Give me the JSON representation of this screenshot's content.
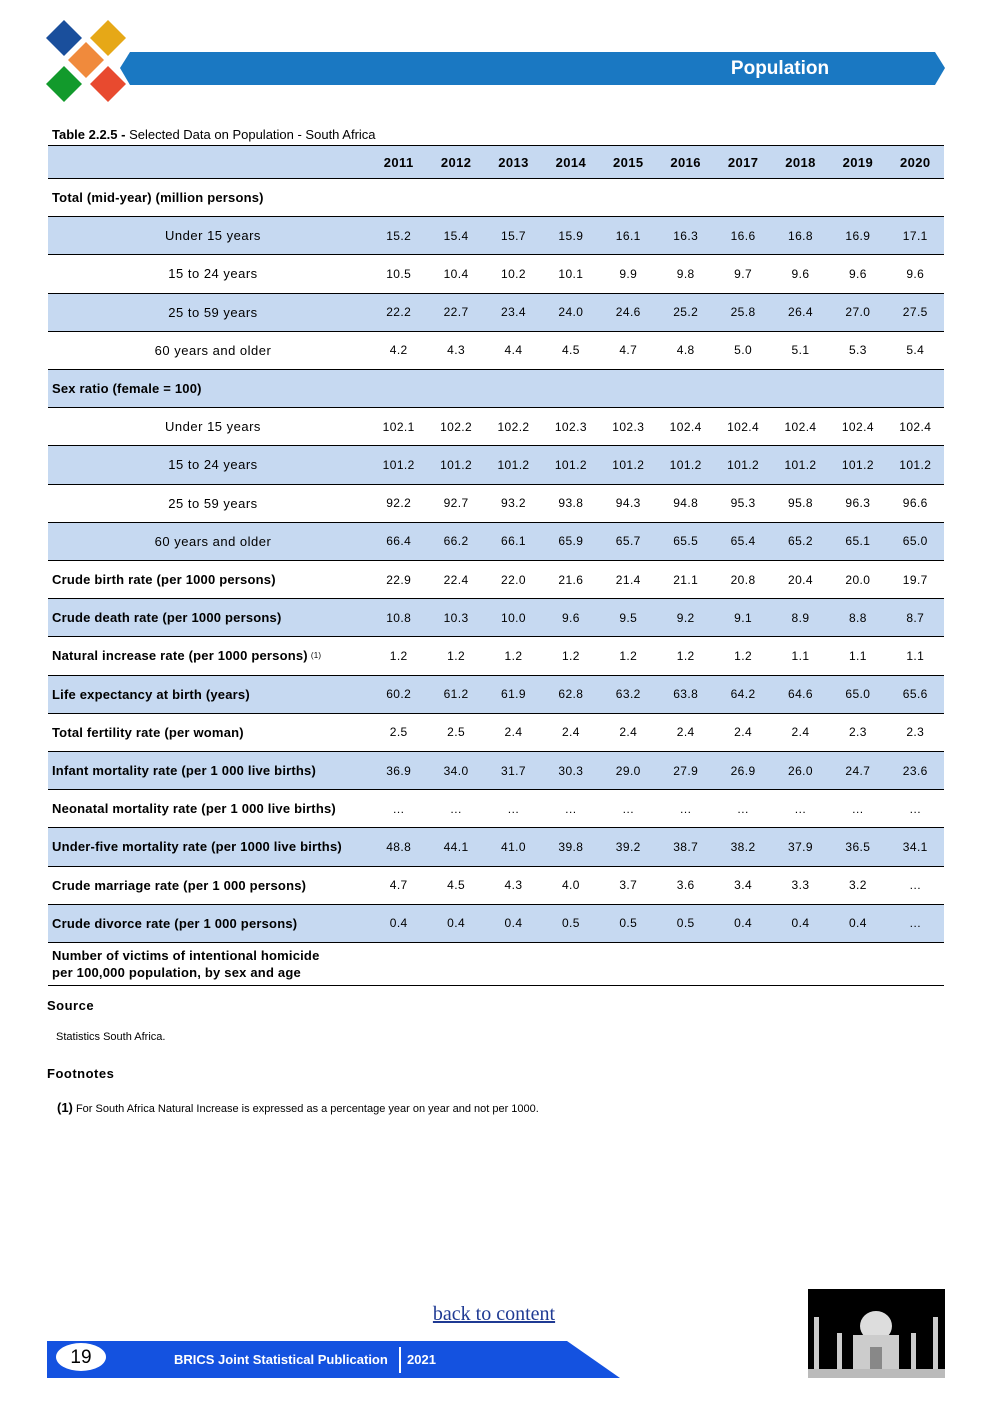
{
  "header": {
    "section": "Population"
  },
  "table": {
    "caption_label": "Table 2.2.5 -",
    "caption_text": "Selected Data on Population - South Africa",
    "columns": [
      "2011",
      "2012",
      "2013",
      "2014",
      "2015",
      "2016",
      "2017",
      "2018",
      "2019",
      "2020"
    ],
    "rows": [
      {
        "label": "Total (mid-year) (million persons)",
        "subrows": [
          {
            "label": "Under 15 years",
            "values": [
              "15.2",
              "15.4",
              "15.7",
              "15.9",
              "16.1",
              "16.3",
              "16.6",
              "16.8",
              "16.9",
              "17.1"
            ]
          },
          {
            "label": "15 to 24 years",
            "values": [
              "10.5",
              "10.4",
              "10.2",
              "10.1",
              "9.9",
              "9.8",
              "9.7",
              "9.6",
              "9.6",
              "9.6"
            ]
          },
          {
            "label": "25 to 59 years",
            "values": [
              "22.2",
              "22.7",
              "23.4",
              "24.0",
              "24.6",
              "25.2",
              "25.8",
              "26.4",
              "27.0",
              "27.5"
            ]
          },
          {
            "label": "60 years and older",
            "values": [
              "4.2",
              "4.3",
              "4.4",
              "4.5",
              "4.7",
              "4.8",
              "5.0",
              "5.1",
              "5.3",
              "5.4"
            ]
          }
        ]
      },
      {
        "label": "Sex ratio (female = 100)",
        "subrows": [
          {
            "label": "Under 15 years",
            "values": [
              "102.1",
              "102.2",
              "102.2",
              "102.3",
              "102.3",
              "102.4",
              "102.4",
              "102.4",
              "102.4",
              "102.4"
            ]
          },
          {
            "label": "15 to 24 years",
            "values": [
              "101.2",
              "101.2",
              "101.2",
              "101.2",
              "101.2",
              "101.2",
              "101.2",
              "101.2",
              "101.2",
              "101.2"
            ]
          },
          {
            "label": "25 to 59 years",
            "values": [
              "92.2",
              "92.7",
              "93.2",
              "93.8",
              "94.3",
              "94.8",
              "95.3",
              "95.8",
              "96.3",
              "96.6"
            ]
          },
          {
            "label": "60 years and older",
            "values": [
              "66.4",
              "66.2",
              "66.1",
              "65.9",
              "65.7",
              "65.5",
              "65.4",
              "65.2",
              "65.1",
              "65.0"
            ]
          }
        ]
      },
      {
        "label": "Crude birth rate (per 1000 persons)",
        "values": [
          "22.9",
          "22.4",
          "22.0",
          "21.6",
          "21.4",
          "21.1",
          "20.8",
          "20.4",
          "20.0",
          "19.7"
        ]
      },
      {
        "label": "Crude death  rate (per 1000 persons)",
        "values": [
          "10.8",
          "10.3",
          "10.0",
          "9.6",
          "9.5",
          "9.2",
          "9.1",
          "8.9",
          "8.8",
          "8.7"
        ]
      },
      {
        "label": "Natural increase rate (per 1000 persons)",
        "note": "(1)",
        "values": [
          "1.2",
          "1.2",
          "1.2",
          "1.2",
          "1.2",
          "1.2",
          "1.2",
          "1.1",
          "1.1",
          "1.1"
        ]
      },
      {
        "label": "Life expectancy at birth (years)",
        "values": [
          "60.2",
          "61.2",
          "61.9",
          "62.8",
          "63.2",
          "63.8",
          "64.2",
          "64.6",
          "65.0",
          "65.6"
        ]
      },
      {
        "label": "Total fertility rate (per woman)",
        "values": [
          "2.5",
          "2.5",
          "2.4",
          "2.4",
          "2.4",
          "2.4",
          "2.4",
          "2.4",
          "2.3",
          "2.3"
        ]
      },
      {
        "label": "Infant mortality rate (per 1 000 live births)",
        "values": [
          "36.9",
          "34.0",
          "31.7",
          "30.3",
          "29.0",
          "27.9",
          "26.9",
          "26.0",
          "24.7",
          "23.6"
        ]
      },
      {
        "label": "Neonatal mortality rate (per 1 000 live births)",
        "values": [
          "…",
          "…",
          "…",
          "…",
          "…",
          "…",
          "…",
          "…",
          "…",
          "…"
        ]
      },
      {
        "label": "Under-five mortality rate (per 1000 live births)",
        "values": [
          "48.8",
          "44.1",
          "41.0",
          "39.8",
          "39.2",
          "38.7",
          "38.2",
          "37.9",
          "36.5",
          "34.1"
        ]
      },
      {
        "label": "Crude marriage rate (per 1 000 persons)",
        "values": [
          "4.7",
          "4.5",
          "4.3",
          "4.0",
          "3.7",
          "3.6",
          "3.4",
          "3.3",
          "3.2",
          "…"
        ]
      },
      {
        "label": "Crude divorce rate (per 1 000 persons)",
        "values": [
          "0.4",
          "0.4",
          "0.4",
          "0.5",
          "0.5",
          "0.5",
          "0.4",
          "0.4",
          "0.4",
          "…"
        ]
      },
      {
        "label_lines": [
          "Number of victims of intentional homicide",
          "per 100,000 population, by sex and age"
        ]
      }
    ]
  },
  "source": {
    "heading": "Source",
    "text": "Statistics South Africa."
  },
  "footnotes": {
    "heading": "Footnotes",
    "items": [
      {
        "mark": "(1)",
        "text": "For South Africa Natural Increase is expressed as a percentage year on year and not per 1000."
      }
    ]
  },
  "footer": {
    "link": "back to content",
    "page": "19",
    "publication": "BRICS Joint Statistical Publication",
    "year": "2021"
  }
}
